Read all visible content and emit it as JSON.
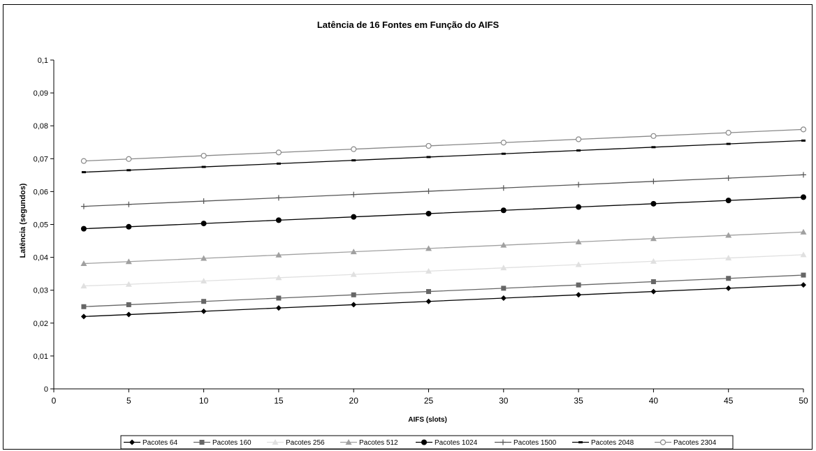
{
  "chart_data": {
    "type": "line",
    "title": "Latência de 16 Fontes em Função do AIFS",
    "xlabel": "AIFS (slots)",
    "ylabel": "Latência (segundos)",
    "xlim": [
      0,
      50
    ],
    "ylim": [
      0,
      0.1
    ],
    "x_ticks": [
      0,
      5,
      10,
      15,
      20,
      25,
      30,
      35,
      40,
      45,
      50
    ],
    "x_tick_labels": [
      "0",
      "5",
      "10",
      "15",
      "20",
      "25",
      "30",
      "35",
      "40",
      "45",
      "50"
    ],
    "y_ticks": [
      0,
      0.01,
      0.02,
      0.03,
      0.04,
      0.05,
      0.06,
      0.07,
      0.08,
      0.09,
      0.1
    ],
    "y_tick_labels": [
      "0",
      "0,01",
      "0,02",
      "0,03",
      "0,04",
      "0,05",
      "0,06",
      "0,07",
      "0,08",
      "0,09",
      "0,1"
    ],
    "grid": false,
    "legend_position": "bottom",
    "x": [
      2,
      5,
      10,
      15,
      20,
      25,
      30,
      35,
      40,
      45,
      50
    ],
    "series": [
      {
        "name": "Pacotes 64",
        "color": "#000000",
        "marker": "diamond",
        "values": [
          0.022,
          0.0226,
          0.0236,
          0.0246,
          0.0256,
          0.0266,
          0.0276,
          0.0286,
          0.0296,
          0.0306,
          0.0316
        ]
      },
      {
        "name": "Pacotes 160",
        "color": "#666666",
        "marker": "square",
        "values": [
          0.025,
          0.0256,
          0.0266,
          0.0276,
          0.0286,
          0.0296,
          0.0306,
          0.0316,
          0.0326,
          0.0336,
          0.0346
        ]
      },
      {
        "name": "Pacotes 256",
        "color": "#e0e0e0",
        "marker": "triangle",
        "values": [
          0.0313,
          0.0318,
          0.0328,
          0.0338,
          0.0348,
          0.0358,
          0.0368,
          0.0378,
          0.0388,
          0.0398,
          0.0408
        ]
      },
      {
        "name": "Pacotes 512",
        "color": "#a0a0a0",
        "marker": "triangle",
        "values": [
          0.0381,
          0.0387,
          0.0397,
          0.0407,
          0.0417,
          0.0427,
          0.0437,
          0.0447,
          0.0457,
          0.0467,
          0.0477
        ]
      },
      {
        "name": "Pacotes 1024",
        "color": "#000000",
        "marker": "circle",
        "values": [
          0.0487,
          0.0493,
          0.0503,
          0.0513,
          0.0523,
          0.0533,
          0.0543,
          0.0553,
          0.0563,
          0.0573,
          0.0583
        ]
      },
      {
        "name": "Pacotes 1500",
        "color": "#555555",
        "marker": "plus",
        "values": [
          0.0555,
          0.0561,
          0.0571,
          0.0581,
          0.0591,
          0.0601,
          0.0611,
          0.0621,
          0.0631,
          0.0641,
          0.0651
        ]
      },
      {
        "name": "Pacotes 2048",
        "color": "#000000",
        "marker": "dash",
        "values": [
          0.0659,
          0.0665,
          0.0675,
          0.0685,
          0.0695,
          0.0705,
          0.0715,
          0.0725,
          0.0735,
          0.0745,
          0.0755
        ]
      },
      {
        "name": "Pacotes 2304",
        "color": "#888888",
        "marker": "open-circle",
        "values": [
          0.0693,
          0.0699,
          0.0709,
          0.0719,
          0.0729,
          0.0739,
          0.0749,
          0.0759,
          0.0769,
          0.0779,
          0.0789
        ]
      }
    ]
  }
}
